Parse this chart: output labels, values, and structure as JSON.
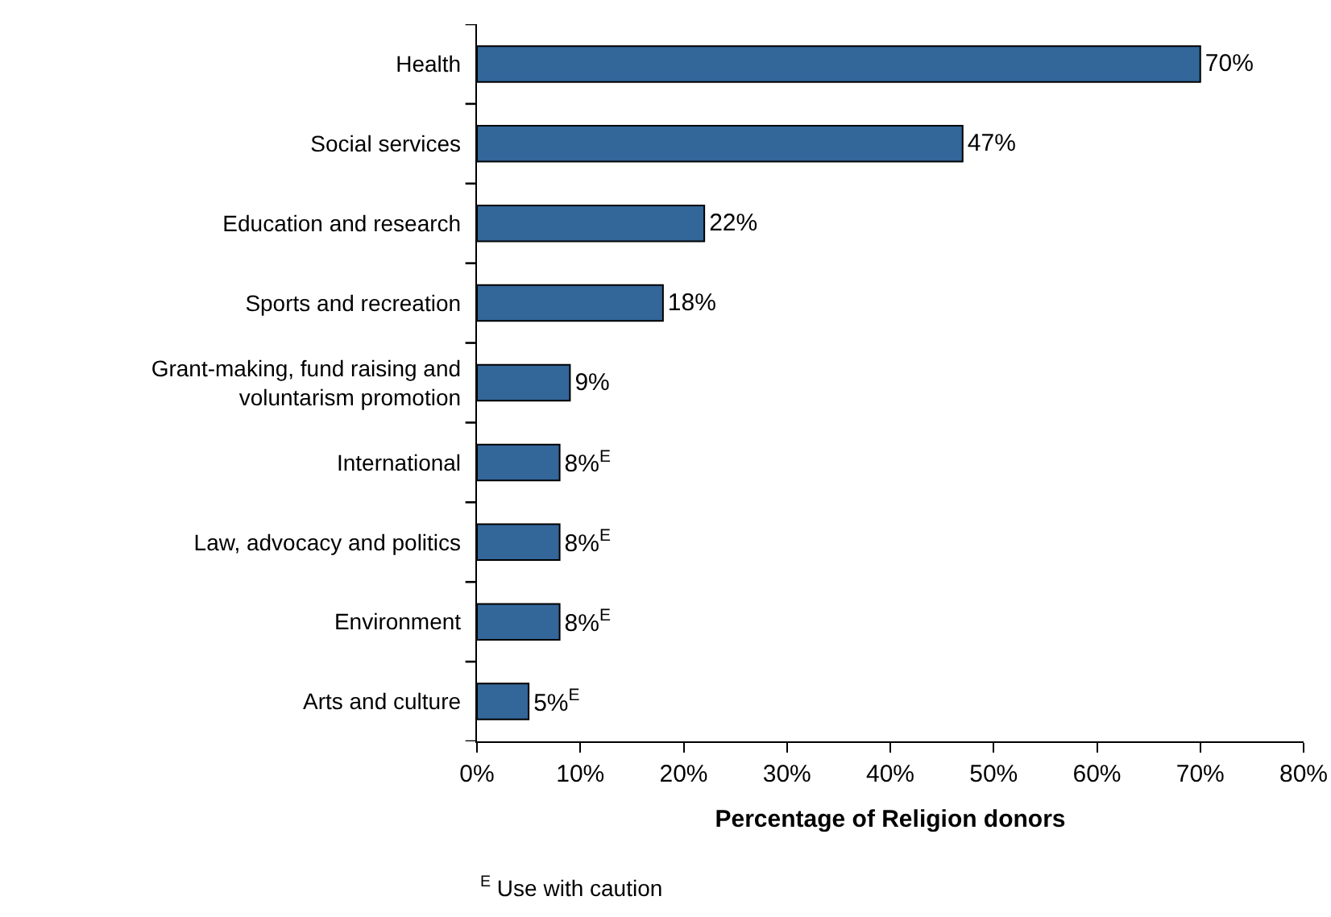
{
  "chart_data": {
    "type": "bar",
    "orientation": "horizontal",
    "categories": [
      "Health",
      "Social services",
      "Education and research",
      "Sports and recreation",
      "Grant-making, fund raising and voluntarism promotion",
      "International",
      "Law, advocacy and politics",
      "Environment",
      "Arts and culture"
    ],
    "values": [
      70,
      47,
      22,
      18,
      9,
      8,
      8,
      8,
      5
    ],
    "color": "#336699",
    "value_labels": [
      "70%",
      "47%",
      "22%",
      "18%",
      "9%",
      "8%$^{E}$",
      "8%$^{E}$",
      "8%$^{E}$",
      "5%$^{E}$"
    ],
    "xlim": [
      0,
      80
    ],
    "xticks": [
      {
        "value": 0,
        "label": "0%"
      },
      {
        "value": 10,
        "label": "10%"
      },
      {
        "value": 20,
        "label": "20%"
      },
      {
        "value": 30,
        "label": "30%"
      },
      {
        "value": 40,
        "label": "40%"
      },
      {
        "value": 50,
        "label": "50%"
      },
      {
        "value": 60,
        "label": "60%"
      },
      {
        "value": 70,
        "label": "70%"
      },
      {
        "value": 80,
        "label": "80%"
      }
    ],
    "xlabel": "Percentage of Religion donors",
    "annotations": [
      "$^{E}$ Use with caution"
    ]
  }
}
